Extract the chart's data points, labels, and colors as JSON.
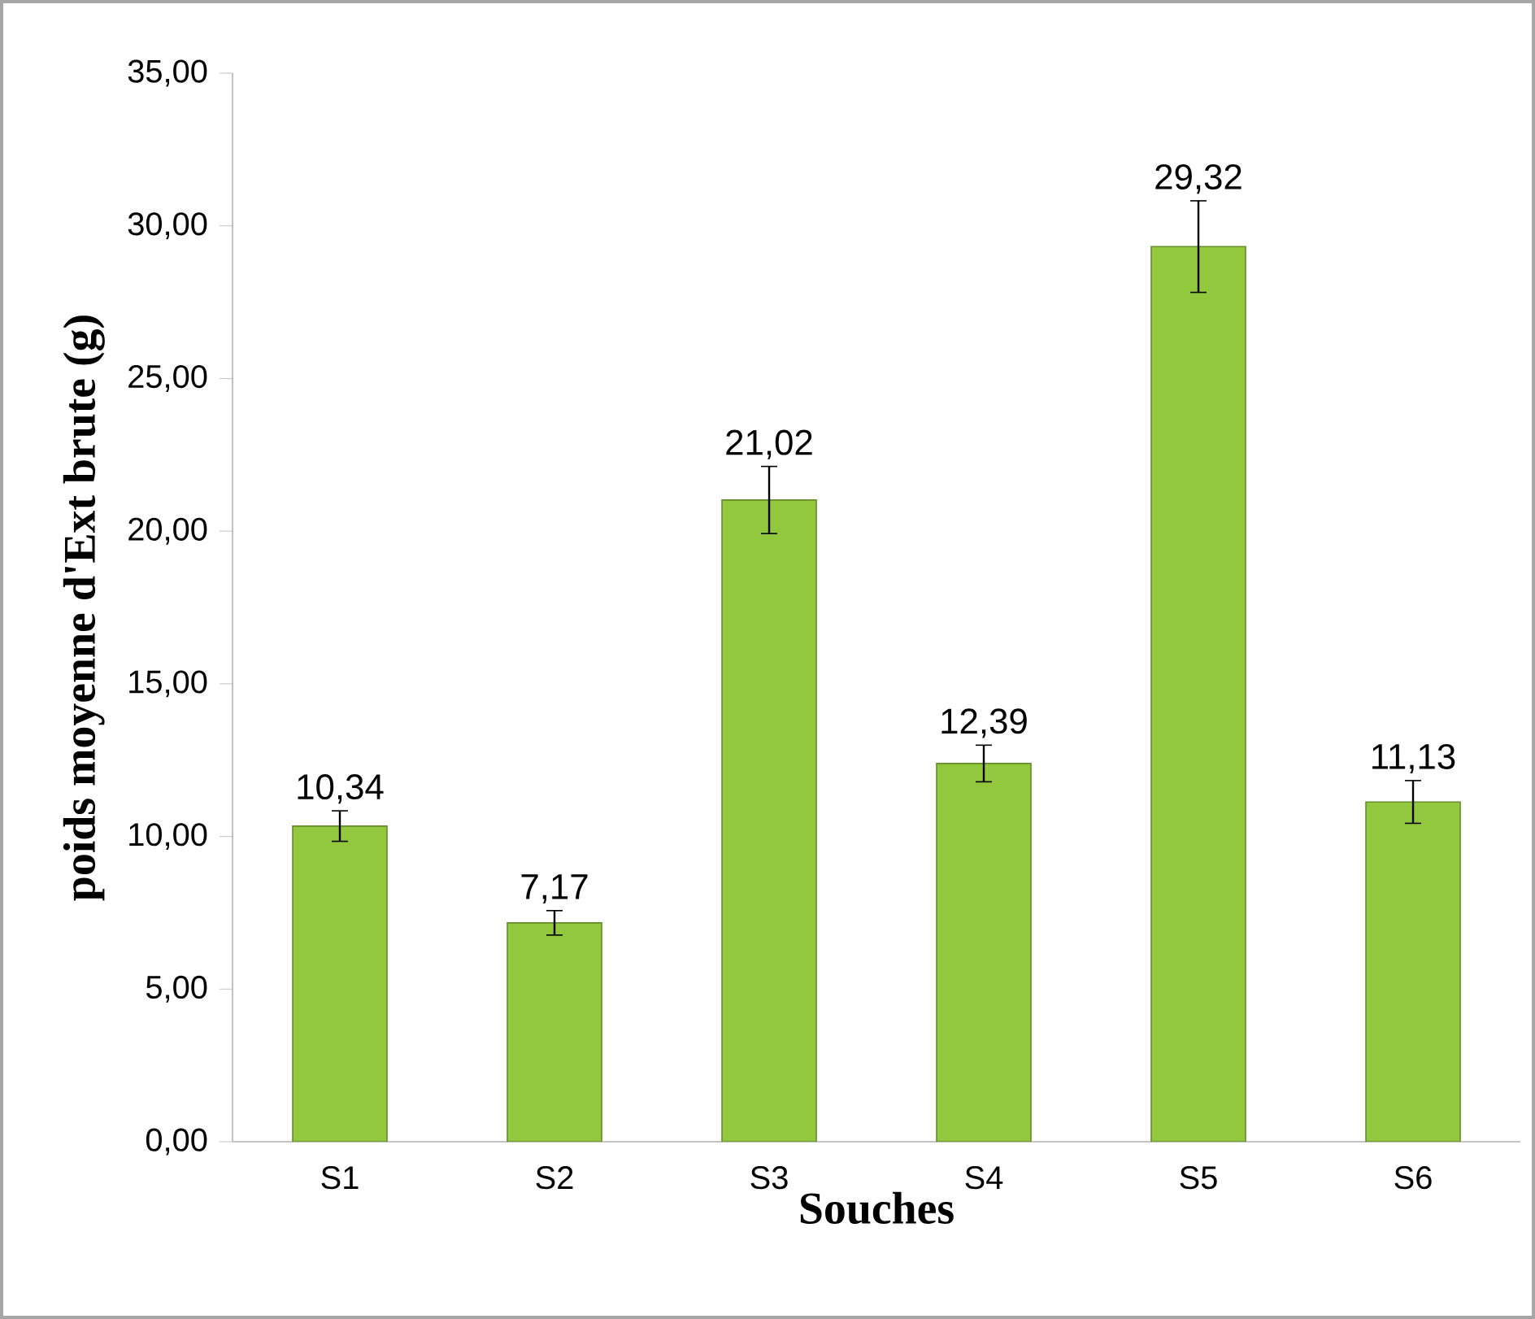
{
  "chart_data": {
    "type": "bar",
    "xlabel": "Souches",
    "ylabel": "poids moyenne d'Ext brute (g)",
    "categories": [
      "S1",
      "S2",
      "S3",
      "S4",
      "S5",
      "S6"
    ],
    "values": [
      10.34,
      7.17,
      21.02,
      12.39,
      29.32,
      11.13
    ],
    "value_labels": [
      "10,34",
      "7,17",
      "21,02",
      "12,39",
      "29,32",
      "11,13"
    ],
    "errors": [
      0.5,
      0.4,
      1.1,
      0.6,
      1.5,
      0.7
    ],
    "color": "#92c83e",
    "ylim": [
      0,
      35
    ],
    "yticks": [
      {
        "value": 0,
        "label": "0,00"
      },
      {
        "value": 5,
        "label": "5,00"
      },
      {
        "value": 10,
        "label": "10,00"
      },
      {
        "value": 15,
        "label": "15,00"
      },
      {
        "value": 20,
        "label": "20,00"
      },
      {
        "value": 25,
        "label": "25,00"
      },
      {
        "value": 30,
        "label": "30,00"
      },
      {
        "value": 35,
        "label": "35,00"
      }
    ],
    "grid": false
  }
}
